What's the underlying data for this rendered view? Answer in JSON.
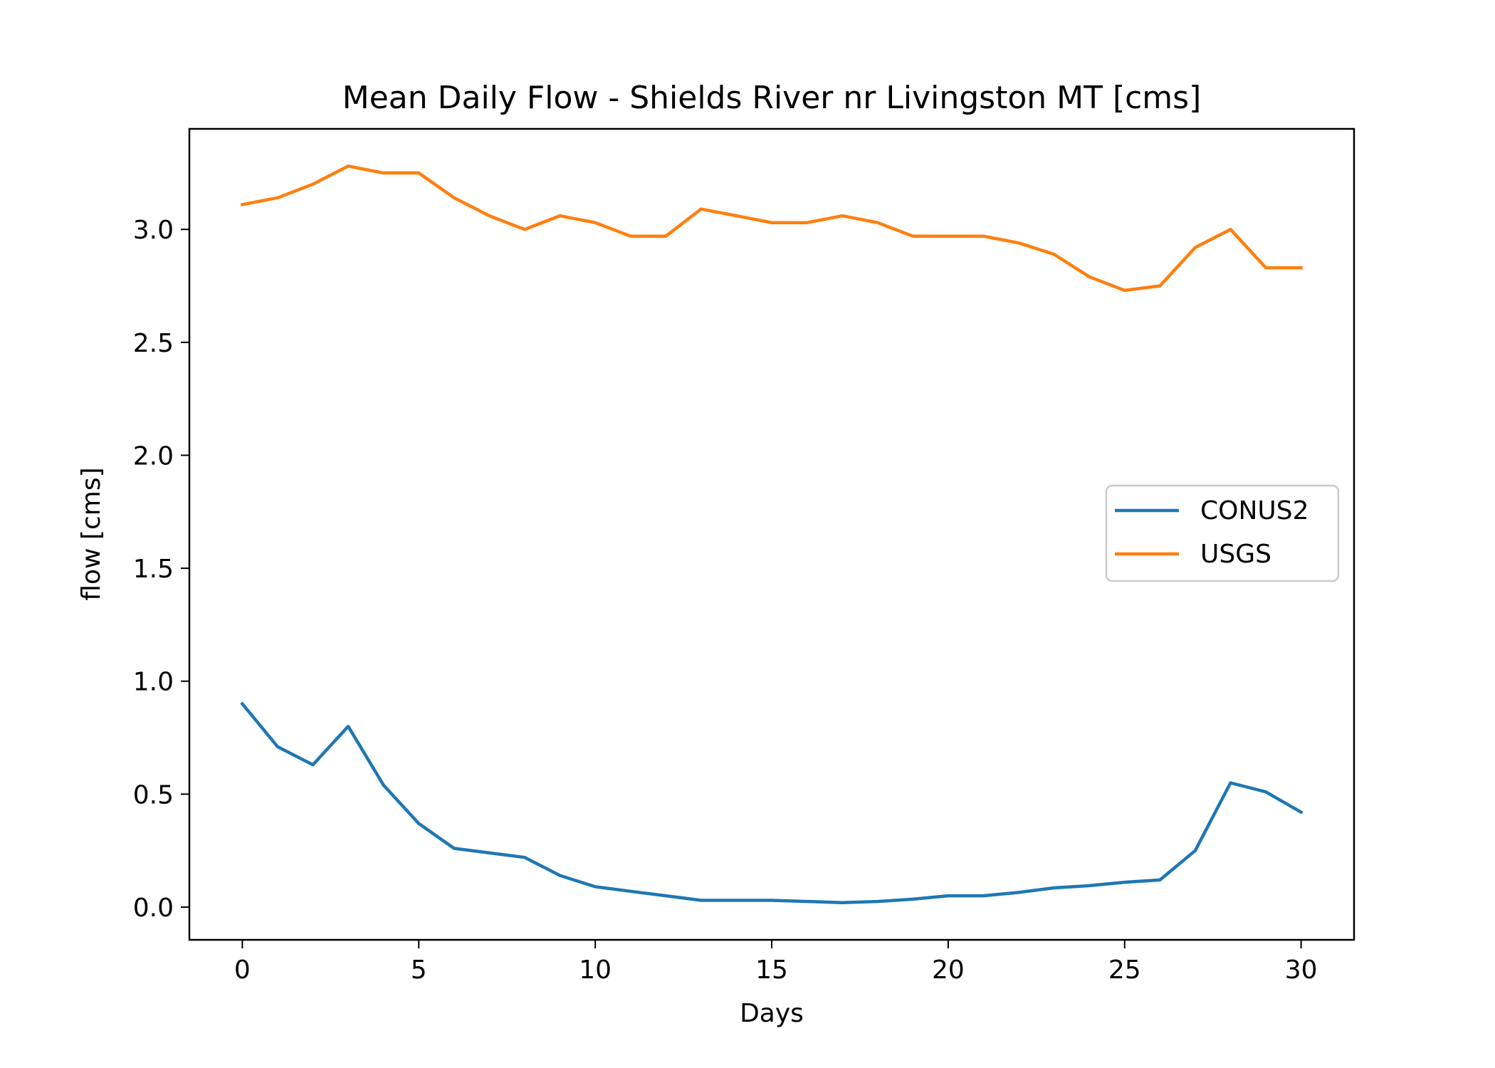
{
  "chart_data": {
    "type": "line",
    "title": "Mean Daily Flow - Shields River nr Livingston MT [cms]",
    "xlabel": "Days",
    "ylabel": "flow [cms]",
    "xlim": [
      -1.5,
      31.5
    ],
    "ylim": [
      -0.145,
      3.445
    ],
    "xticks": [
      0,
      5,
      10,
      15,
      20,
      25,
      30
    ],
    "xtick_labels": [
      "0",
      "5",
      "10",
      "15",
      "20",
      "25",
      "30"
    ],
    "yticks": [
      0.0,
      0.5,
      1.0,
      1.5,
      2.0,
      2.5,
      3.0
    ],
    "ytick_labels": [
      "0.0",
      "0.5",
      "1.0",
      "1.5",
      "2.0",
      "2.5",
      "3.0"
    ],
    "grid": false,
    "legend_position": "center-right",
    "x": [
      0,
      1,
      2,
      3,
      4,
      5,
      6,
      7,
      8,
      9,
      10,
      11,
      12,
      13,
      14,
      15,
      16,
      17,
      18,
      19,
      20,
      21,
      22,
      23,
      24,
      25,
      26,
      27,
      28,
      29,
      30
    ],
    "series": [
      {
        "name": "CONUS2",
        "color": "#1f77b4",
        "values": [
          0.9,
          0.71,
          0.63,
          0.8,
          0.54,
          0.37,
          0.26,
          0.24,
          0.22,
          0.14,
          0.09,
          0.07,
          0.05,
          0.03,
          0.03,
          0.03,
          0.025,
          0.02,
          0.025,
          0.035,
          0.05,
          0.05,
          0.065,
          0.085,
          0.095,
          0.11,
          0.12,
          0.25,
          0.55,
          0.51,
          0.42
        ]
      },
      {
        "name": "USGS",
        "color": "#ff7f0e",
        "values": [
          3.11,
          3.14,
          3.2,
          3.28,
          3.25,
          3.25,
          3.14,
          3.06,
          3.0,
          3.06,
          3.03,
          2.97,
          2.97,
          3.09,
          3.06,
          3.03,
          3.03,
          3.06,
          3.03,
          2.97,
          2.97,
          2.97,
          2.94,
          2.89,
          2.79,
          2.73,
          2.75,
          2.92,
          3.0,
          2.83,
          2.83
        ]
      }
    ]
  }
}
